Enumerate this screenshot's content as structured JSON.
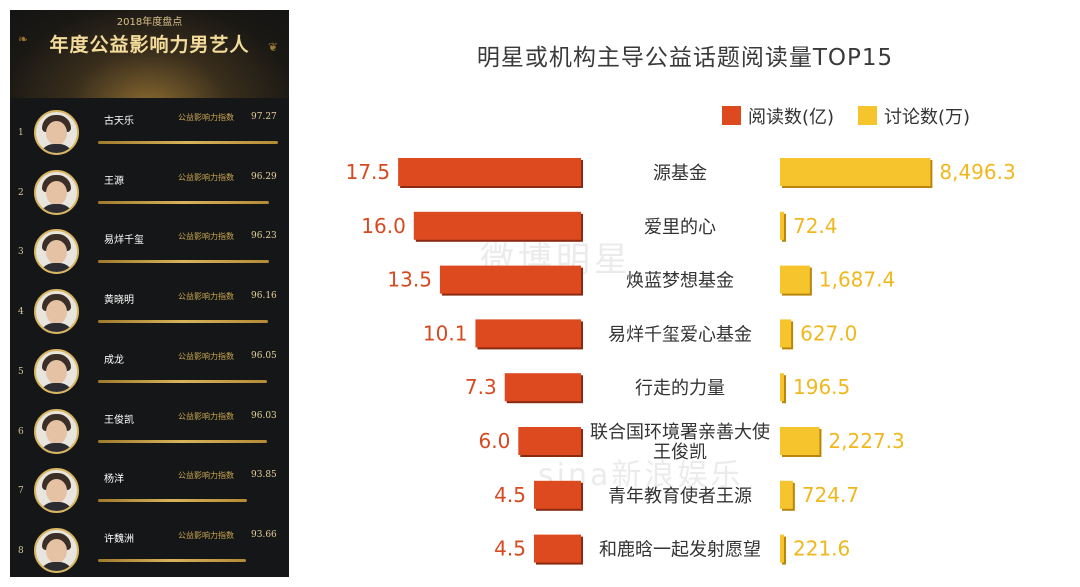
{
  "left_panel": {
    "year_label": "2018年度盘点",
    "title": "年度公益影响力男艺人",
    "index_label": "公益影响力指数",
    "rankings": [
      {
        "rank": "1",
        "name": "古天乐",
        "index": "97.27",
        "score": 97.27
      },
      {
        "rank": "2",
        "name": "王源",
        "index": "96.29",
        "score": 96.29
      },
      {
        "rank": "3",
        "name": "易烊千玺",
        "index": "96.23",
        "score": 96.23
      },
      {
        "rank": "4",
        "name": "黄晓明",
        "index": "96.16",
        "score": 96.16
      },
      {
        "rank": "5",
        "name": "成龙",
        "index": "96.05",
        "score": 96.05
      },
      {
        "rank": "6",
        "name": "王俊凯",
        "index": "96.03",
        "score": 96.03
      },
      {
        "rank": "7",
        "name": "杨洋",
        "index": "93.85",
        "score": 93.85
      },
      {
        "rank": "8",
        "name": "许魏洲",
        "index": "93.66",
        "score": 93.66
      }
    ]
  },
  "watermarks": [
    "微博明星",
    "sina新浪娱乐"
  ],
  "colors": {
    "reads": "#dd4a1f",
    "discussions": "#f6c42c",
    "gold": "#d9b661"
  },
  "chart_data": {
    "type": "bar",
    "title": "明星或机构主导公益话题阅读量TOP15",
    "legend_placement": "top-right",
    "categories": [
      "源基金",
      "爱里的心",
      "焕蓝梦想基金",
      "易烊千玺爱心基金",
      "行走的力量",
      "联合国环境署亲善大使\n王俊凯",
      "青年教育使者王源",
      "和鹿晗一起发射愿望"
    ],
    "series": [
      {
        "name": "阅读数(亿)",
        "values": [
          17.5,
          16.0,
          13.5,
          10.1,
          7.3,
          6.0,
          4.5,
          4.5
        ],
        "labels": [
          "17.5",
          "16.0",
          "13.5",
          "10.1",
          "7.3",
          "6.0",
          "4.5",
          "4.5"
        ]
      },
      {
        "name": "讨论数(万)",
        "values": [
          8496.3,
          72.4,
          1687.4,
          627.0,
          196.5,
          2227.3,
          724.7,
          221.6
        ],
        "labels": [
          "8,496.3",
          "72.4",
          "1,687.4",
          "627.0",
          "196.5",
          "2,227.3",
          "724.7",
          "221.6"
        ]
      }
    ]
  }
}
